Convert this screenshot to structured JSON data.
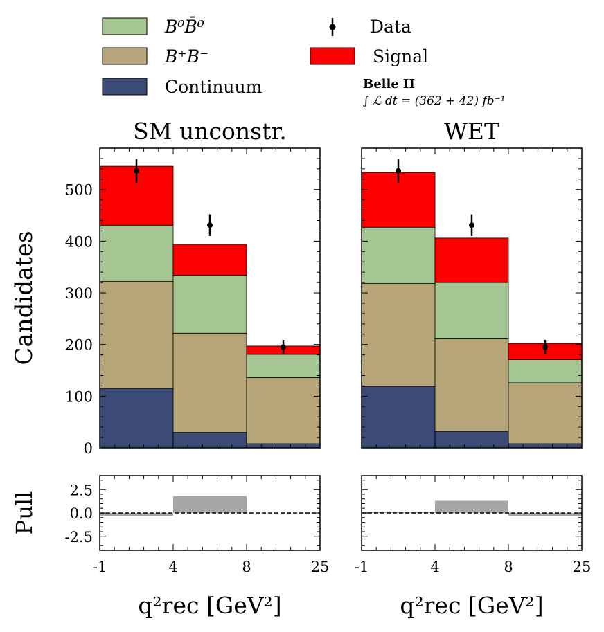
{
  "chart_data": [
    {
      "type": "bar",
      "stacked": true,
      "title": "SM unconstr.",
      "xlabel": "q²rec [GeV²]",
      "ylabel": "Candidates",
      "bin_edges": [
        "-1",
        "4",
        "8",
        "25"
      ],
      "ylim": [
        0,
        580
      ],
      "yticks": [
        0,
        100,
        200,
        300,
        400,
        500
      ],
      "series": [
        {
          "name": "Continuum",
          "values": [
            115,
            30,
            8
          ]
        },
        {
          "name": "B⁺B⁻",
          "values": [
            207,
            192,
            128
          ]
        },
        {
          "name": "B⁰B̄⁰",
          "values": [
            109,
            112,
            45
          ]
        },
        {
          "name": "Signal",
          "values": [
            114,
            60,
            16
          ]
        }
      ],
      "data_points": {
        "name": "Data",
        "values": [
          536,
          431,
          195
        ],
        "errors": [
          23,
          21,
          14
        ]
      },
      "pull": {
        "ylabel": "Pull",
        "ylim": [
          -4,
          4
        ],
        "yticks": [
          "2.5",
          "0.0",
          "-2.5"
        ],
        "values": [
          -0.3,
          1.8,
          0.0
        ]
      }
    },
    {
      "type": "bar",
      "stacked": true,
      "title": "WET",
      "xlabel": "q²rec [GeV²]",
      "ylabel": "",
      "bin_edges": [
        "-1",
        "4",
        "8",
        "25"
      ],
      "ylim": [
        0,
        580
      ],
      "yticks": [
        0,
        100,
        200,
        300,
        400,
        500
      ],
      "series": [
        {
          "name": "Continuum",
          "values": [
            119,
            32,
            8
          ]
        },
        {
          "name": "B⁺B⁻",
          "values": [
            199,
            179,
            118
          ]
        },
        {
          "name": "B⁰B̄⁰",
          "values": [
            109,
            109,
            45
          ]
        },
        {
          "name": "Signal",
          "values": [
            106,
            86,
            31
          ]
        }
      ],
      "data_points": {
        "name": "Data",
        "values": [
          536,
          431,
          195
        ],
        "errors": [
          23,
          21,
          14
        ]
      },
      "pull": {
        "ylabel": "Pull",
        "ylim": [
          -4,
          4
        ],
        "yticks": [
          "2.5",
          "0.0",
          "-2.5"
        ],
        "values": [
          0.1,
          1.3,
          -0.3
        ]
      }
    }
  ],
  "legend": {
    "items": [
      {
        "label": "B⁰B̄⁰",
        "color": "#a5c693",
        "kind": "patch"
      },
      {
        "label": "B⁺B⁻",
        "color": "#b5a578",
        "kind": "patch"
      },
      {
        "label": "Continuum",
        "color": "#3c4a76",
        "kind": "patch"
      },
      {
        "label": "Data",
        "color": "#000000",
        "kind": "errorbar"
      },
      {
        "label": "Signal",
        "color": "#ff0000",
        "kind": "patch"
      }
    ]
  },
  "experiment": {
    "name": "Belle II",
    "lumi": "∫ ℒ dt = (362 + 42) fb⁻¹"
  },
  "colors": {
    "pull_bar": "#a6a6a6",
    "outline": "#000000"
  }
}
